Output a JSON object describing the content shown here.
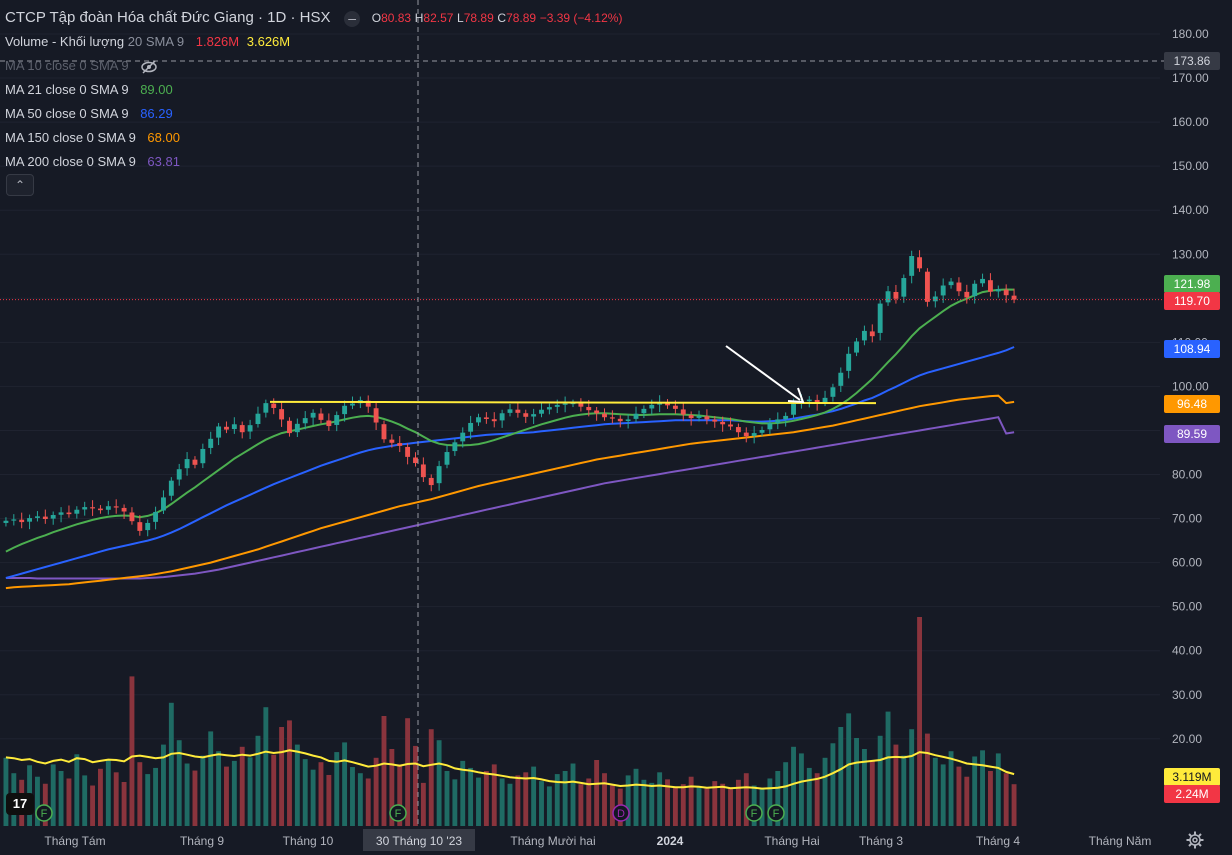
{
  "header": {
    "title": "CTCP Tập đoàn Hóa chất Đức Giang · 1D · HSX",
    "ohlc": [
      {
        "label": "O",
        "value": "80.83"
      },
      {
        "label": "H",
        "value": "82.57"
      },
      {
        "label": "L",
        "value": "78.89"
      },
      {
        "label": "C",
        "value": "78.89"
      }
    ],
    "change": "−3.39 (−4.12%)"
  },
  "indicators": [
    {
      "label": "Volume - Khối lượng",
      "params": "20 SMA 9",
      "values": [
        "1.826M",
        "3.626M"
      ],
      "colors": [
        "#f23645",
        "#ffeb3b"
      ]
    },
    {
      "label": "MA 10 close 0 SMA 9",
      "values": [],
      "hidden": true
    },
    {
      "label": "MA 21 close 0 SMA 9",
      "values": [
        "89.00"
      ],
      "colors": [
        "#4caf50"
      ]
    },
    {
      "label": "MA 50 close 0 SMA 9",
      "values": [
        "86.29"
      ],
      "colors": [
        "#2962ff"
      ]
    },
    {
      "label": "MA 150 close 0 SMA 9",
      "values": [
        "68.00"
      ],
      "colors": [
        "#ff9800"
      ]
    },
    {
      "label": "MA 200 close 0 SMA 9",
      "values": [
        "63.81"
      ],
      "colors": [
        "#7e57c2"
      ]
    }
  ],
  "collapse_icon": "chevron-up-icon",
  "logo_text": "17",
  "colors": {
    "up": "#26a69a",
    "down": "#ef5350",
    "ma21": "#4caf50",
    "ma50": "#2962ff",
    "ma150": "#ff9800",
    "ma200": "#7e57c2",
    "vol_ma": "#ffeb3b",
    "resistance": "#ffeb3b"
  },
  "chart_data": {
    "type": "candlestick",
    "y_ticks": [
      "180.00",
      "170.00",
      "160.00",
      "150.00",
      "140.00",
      "130.00",
      "120.00",
      "110.00",
      "100.00",
      "90.00",
      "80.00",
      "70.00",
      "60.00",
      "50.00",
      "40.00",
      "30.00",
      "20.00"
    ],
    "ylim": [
      10,
      184
    ],
    "x_labels": [
      "Tháng Tám",
      "Tháng 9",
      "Tháng 10",
      "Tháng Mười hai",
      "2024",
      "Tháng Hai",
      "Tháng 3",
      "Tháng 4",
      "Tháng Năm"
    ],
    "crosshair": {
      "date_label": "30 Tháng 10 '23",
      "price_label": "173.86",
      "price": 173.86
    },
    "price_labels": [
      {
        "text": "121.98",
        "value": 121.98,
        "color": "#4caf50"
      },
      {
        "text": "119.70",
        "value": 119.7,
        "color": "#f23645"
      },
      {
        "text": "108.94",
        "value": 108.94,
        "color": "#2962ff"
      },
      {
        "text": "96.48",
        "value": 96.48,
        "color": "#ff9800"
      },
      {
        "text": "89.59",
        "value": 89.59,
        "color": "#7e57c2"
      },
      {
        "text": "3.119M",
        "color": "#ffeb3b"
      },
      {
        "text": "2.24M",
        "color": "#f23645"
      }
    ],
    "resistance_price": 96.5,
    "last_price": 119.7,
    "close": [
      69.5,
      69.8,
      69.2,
      70.1,
      70.5,
      69.9,
      70.8,
      71.4,
      71.0,
      72.0,
      72.6,
      72.3,
      71.9,
      72.8,
      72.5,
      71.6,
      69.4,
      67.2,
      69.0,
      71.5,
      74.8,
      78.6,
      81.2,
      83.5,
      82.2,
      85.8,
      88.1,
      90.9,
      90.2,
      91.4,
      89.6,
      91.2,
      93.8,
      96.2,
      95.1,
      92.5,
      89.4,
      91.5,
      92.8,
      94.0,
      92.4,
      91.0,
      93.5,
      95.6,
      96.1,
      96.9,
      95.4,
      91.8,
      88.0,
      87.2,
      86.5,
      84.0,
      82.6,
      79.4,
      77.6,
      81.9,
      85.1,
      87.3,
      89.5,
      91.7,
      93.0,
      92.6,
      92.1,
      93.9,
      94.8,
      94.0,
      93.1,
      93.7,
      94.7,
      95.3,
      95.8,
      96.1,
      96.2,
      95.4,
      94.6,
      93.9,
      93.0,
      92.7,
      92.1,
      92.5,
      93.8,
      94.9,
      95.8,
      96.4,
      95.7,
      94.9,
      93.6,
      92.8,
      93.3,
      92.5,
      92.0,
      91.4,
      90.9,
      89.6,
      88.7,
      89.4,
      90.1,
      91.6,
      92.5,
      93.3,
      96.0,
      96.6,
      97.0,
      96.2,
      97.4,
      99.8,
      103.1,
      107.4,
      110.2,
      112.6,
      111.4,
      118.8,
      121.6,
      119.9,
      124.6,
      129.6,
      126.8,
      119.2,
      120.4,
      122.9,
      123.8,
      121.6,
      120.2,
      123.3,
      124.4,
      121.5,
      122.1,
      120.7,
      119.7
    ],
    "volume": [
      15.5,
      12.0,
      10.5,
      13.8,
      11.2,
      9.6,
      14.0,
      12.5,
      10.8,
      16.3,
      11.5,
      9.2,
      13.0,
      15.0,
      12.2,
      10.0,
      34.0,
      14.5,
      11.8,
      13.2,
      18.5,
      28.0,
      19.5,
      14.2,
      12.6,
      16.0,
      21.5,
      17.0,
      13.5,
      14.8,
      18.0,
      15.6,
      20.5,
      27.0,
      16.2,
      22.5,
      24.0,
      18.5,
      15.2,
      12.8,
      14.5,
      11.6,
      16.8,
      19.0,
      13.4,
      12.0,
      10.8,
      15.5,
      25.0,
      17.5,
      14.0,
      24.5,
      18.2,
      9.8,
      22.0,
      19.5,
      12.5,
      10.6,
      14.8,
      13.2,
      11.0,
      12.5,
      14.0,
      10.8,
      9.6,
      11.5,
      12.2,
      13.5,
      10.2,
      9.0,
      11.8,
      12.5,
      14.2,
      9.5,
      10.8,
      15.0,
      12.0,
      9.2,
      8.5,
      11.5,
      13.0,
      10.5,
      9.8,
      12.2,
      10.6,
      8.8,
      9.5,
      11.2,
      9.0,
      8.5,
      10.2,
      9.6,
      8.8,
      10.5,
      12.0,
      9.2,
      8.6,
      10.8,
      12.5,
      14.5,
      18.0,
      16.5,
      13.2,
      12.0,
      15.5,
      18.8,
      22.5,
      25.6,
      20.0,
      17.5,
      14.8,
      20.5,
      26.0,
      18.5,
      16.0,
      22.0,
      47.5,
      21.0,
      15.5,
      14.0,
      17.0,
      13.5,
      11.2,
      15.8,
      17.2,
      12.5,
      16.5,
      12.0,
      9.5
    ],
    "volume_ma": [
      15.6,
      15.4,
      15.0,
      15.2,
      14.6,
      14.2,
      14.8,
      15.1,
      14.6,
      15.4,
      15.2,
      14.5,
      14.8,
      15.1,
      15.0,
      14.7,
      15.8,
      16.0,
      15.7,
      15.4,
      15.6,
      16.4,
      16.6,
      16.2,
      15.8,
      15.6,
      16.0,
      16.3,
      16.1,
      15.9,
      16.2,
      16.0,
      16.4,
      16.9,
      16.6,
      16.8,
      17.2,
      16.9,
      16.5,
      16.0,
      15.6,
      14.8,
      14.6,
      14.9,
      14.5,
      14.0,
      13.5,
      13.7,
      14.2,
      14.0,
      13.7,
      14.1,
      14.2,
      13.6,
      13.9,
      14.2,
      13.8,
      13.1,
      12.8,
      12.6,
      12.2,
      11.9,
      11.7,
      11.4,
      11.1,
      10.9,
      10.8,
      10.9,
      10.6,
      10.2,
      10.0,
      9.9,
      10.1,
      9.8,
      9.5,
      9.6,
      9.7,
      9.4,
      9.1,
      9.2,
      9.4,
      9.3,
      9.1,
      9.2,
      9.0,
      8.8,
      8.8,
      9.0,
      8.9,
      8.7,
      8.8,
      8.9,
      8.6,
      8.7,
      8.8,
      8.7,
      8.5,
      8.6,
      8.7,
      9.0,
      9.6,
      10.1,
      10.4,
      10.7,
      11.2,
      12.0,
      12.9,
      14.0,
      14.4,
      14.6,
      14.8,
      15.0,
      15.6,
      15.7,
      15.6,
      15.9,
      16.8,
      16.6,
      16.1,
      15.7,
      15.3,
      14.8,
      14.2,
      14.0,
      13.8,
      13.5,
      13.2,
      12.3,
      11.8
    ],
    "ma21": [
      62.5,
      63.4,
      64.2,
      64.9,
      65.6,
      66.2,
      66.9,
      67.5,
      68.1,
      68.7,
      69.2,
      69.7,
      70.1,
      70.4,
      70.6,
      70.7,
      70.6,
      70.3,
      70.6,
      71.2,
      72.1,
      73.3,
      74.6,
      75.9,
      77.1,
      78.4,
      79.7,
      81.0,
      82.3,
      83.6,
      84.7,
      85.8,
      86.9,
      87.9,
      88.7,
      89.4,
      89.8,
      90.2,
      90.6,
      91.0,
      91.4,
      91.7,
      92.1,
      92.5,
      92.9,
      93.2,
      93.3,
      93.1,
      92.6,
      92.0,
      91.3,
      90.4,
      89.6,
      88.6,
      87.6,
      87.0,
      86.7,
      86.6,
      86.6,
      86.7,
      86.9,
      87.3,
      87.8,
      88.4,
      89.0,
      89.6,
      90.2,
      90.8,
      91.4,
      91.9,
      92.4,
      92.9,
      93.3,
      93.6,
      93.8,
      93.9,
      93.9,
      93.8,
      93.7,
      93.6,
      93.5,
      93.5,
      93.6,
      93.7,
      93.7,
      93.7,
      93.6,
      93.5,
      93.4,
      93.2,
      93.0,
      92.8,
      92.6,
      92.3,
      92.0,
      91.8,
      91.6,
      91.6,
      91.7,
      91.9,
      92.2,
      92.6,
      93.0,
      93.5,
      94.1,
      94.9,
      95.9,
      97.1,
      98.5,
      100.1,
      101.7,
      103.6,
      105.5,
      107.3,
      109.3,
      111.4,
      113.2,
      114.5,
      115.8,
      117.1,
      118.3,
      119.2,
      119.9,
      120.7,
      121.4,
      121.7,
      121.9,
      122.0,
      121.98
    ],
    "ma50": [
      56.5,
      57.0,
      57.5,
      58.0,
      58.5,
      59.0,
      59.5,
      60.0,
      60.5,
      61.0,
      61.5,
      62.0,
      62.5,
      63.0,
      63.4,
      63.8,
      64.2,
      64.6,
      65.0,
      65.5,
      66.1,
      66.8,
      67.6,
      68.5,
      69.4,
      70.3,
      71.2,
      72.1,
      73.0,
      73.8,
      74.6,
      75.4,
      76.2,
      77.0,
      77.8,
      78.5,
      79.2,
      79.9,
      80.6,
      81.3,
      82.0,
      82.6,
      83.2,
      83.8,
      84.4,
      85.0,
      85.5,
      85.9,
      86.2,
      86.5,
      86.8,
      87.0,
      87.2,
      87.4,
      87.6,
      87.8,
      88.0,
      88.2,
      88.4,
      88.6,
      88.8,
      89.0,
      89.1,
      89.2,
      89.3,
      89.4,
      89.5,
      89.6,
      89.8,
      90.0,
      90.2,
      90.4,
      90.6,
      90.8,
      91.0,
      91.2,
      91.4,
      91.5,
      91.6,
      91.7,
      91.8,
      91.9,
      92.0,
      92.1,
      92.2,
      92.3,
      92.3,
      92.3,
      92.3,
      92.3,
      92.3,
      92.3,
      92.3,
      92.2,
      92.1,
      92.0,
      92.0,
      92.1,
      92.2,
      92.4,
      92.7,
      93.0,
      93.3,
      93.6,
      94.0,
      94.4,
      94.9,
      95.5,
      96.1,
      96.8,
      97.4,
      98.2,
      99.1,
      99.9,
      100.8,
      101.7,
      102.5,
      103.1,
      103.6,
      104.1,
      104.6,
      105.1,
      105.6,
      106.1,
      106.6,
      107.1,
      107.6,
      108.2,
      108.94
    ],
    "ma150": [
      54.2,
      54.4,
      54.5,
      54.6,
      54.7,
      54.8,
      54.9,
      55.0,
      55.1,
      55.3,
      55.5,
      55.7,
      55.9,
      56.1,
      56.3,
      56.5,
      56.7,
      56.9,
      57.1,
      57.4,
      57.7,
      58.0,
      58.4,
      58.8,
      59.2,
      59.6,
      60.0,
      60.5,
      61.0,
      61.5,
      62.0,
      62.5,
      63.0,
      63.6,
      64.2,
      64.8,
      65.4,
      66.0,
      66.6,
      67.2,
      67.8,
      68.3,
      68.8,
      69.3,
      69.8,
      70.3,
      70.8,
      71.3,
      71.8,
      72.3,
      72.8,
      73.2,
      73.6,
      74.0,
      74.4,
      74.9,
      75.4,
      75.9,
      76.4,
      76.9,
      77.4,
      77.8,
      78.2,
      78.6,
      79.0,
      79.4,
      79.8,
      80.2,
      80.6,
      81.0,
      81.4,
      81.8,
      82.2,
      82.6,
      83.0,
      83.4,
      83.7,
      84.0,
      84.3,
      84.6,
      84.9,
      85.2,
      85.5,
      85.8,
      86.1,
      86.4,
      86.7,
      87.0,
      87.2,
      87.4,
      87.6,
      87.8,
      88.0,
      88.2,
      88.4,
      88.6,
      88.8,
      89.0,
      89.2,
      89.4,
      89.6,
      89.9,
      90.2,
      90.5,
      90.8,
      91.1,
      91.5,
      91.9,
      92.3,
      92.7,
      93.1,
      93.5,
      93.9,
      94.3,
      94.7,
      95.1,
      95.5,
      95.8,
      96.1,
      96.4,
      96.7,
      97.0,
      97.2,
      97.4,
      97.6,
      97.8,
      97.9,
      96.2,
      96.48
    ],
    "ma200": [
      56.5,
      56.5,
      56.5,
      56.5,
      56.4,
      56.4,
      56.4,
      56.4,
      56.4,
      56.4,
      56.4,
      56.4,
      56.4,
      56.4,
      56.4,
      56.4,
      56.4,
      56.4,
      56.5,
      56.6,
      56.7,
      56.9,
      57.1,
      57.3,
      57.5,
      57.8,
      58.1,
      58.4,
      58.8,
      59.2,
      59.6,
      60.0,
      60.4,
      60.8,
      61.2,
      61.6,
      62.0,
      62.4,
      62.8,
      63.2,
      63.6,
      64.0,
      64.4,
      64.8,
      65.2,
      65.6,
      66.0,
      66.4,
      66.8,
      67.2,
      67.6,
      68.0,
      68.4,
      68.8,
      69.2,
      69.6,
      70.0,
      70.4,
      70.8,
      71.2,
      71.6,
      72.0,
      72.4,
      72.8,
      73.2,
      73.6,
      74.0,
      74.4,
      74.8,
      75.2,
      75.6,
      76.0,
      76.4,
      76.8,
      77.2,
      77.6,
      78.0,
      78.3,
      78.6,
      78.9,
      79.2,
      79.5,
      79.8,
      80.1,
      80.4,
      80.7,
      81.0,
      81.3,
      81.6,
      81.9,
      82.2,
      82.5,
      82.8,
      83.1,
      83.4,
      83.7,
      84.0,
      84.3,
      84.6,
      84.9,
      85.2,
      85.5,
      85.8,
      86.1,
      86.4,
      86.7,
      87.0,
      87.3,
      87.6,
      87.9,
      88.2,
      88.5,
      88.8,
      89.1,
      89.4,
      89.7,
      90.0,
      90.3,
      90.6,
      90.9,
      91.2,
      91.5,
      91.8,
      92.1,
      92.4,
      92.7,
      93.0,
      89.3,
      89.59
    ]
  }
}
